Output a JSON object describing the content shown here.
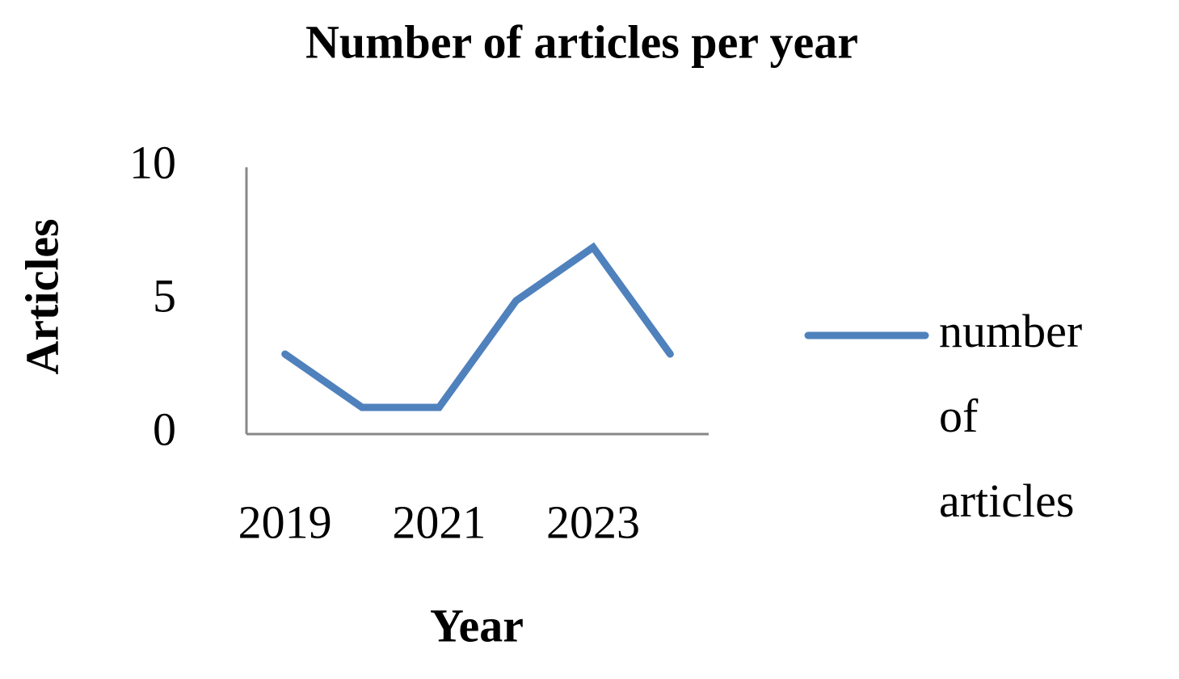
{
  "chart_data": {
    "type": "line",
    "title": "Number of articles per year",
    "x_label": "Year",
    "y_label": "Articles",
    "categories": [
      "2019",
      null,
      "2021",
      null,
      "2023",
      null
    ],
    "series": [
      {
        "name": "number of articles",
        "color": "#4f81bd",
        "values": [
          3,
          1,
          1,
          5,
          7,
          3
        ]
      }
    ],
    "ylim": [
      0,
      10
    ],
    "yticks": [
      0,
      5,
      10
    ],
    "grid": false,
    "legend": "right"
  }
}
